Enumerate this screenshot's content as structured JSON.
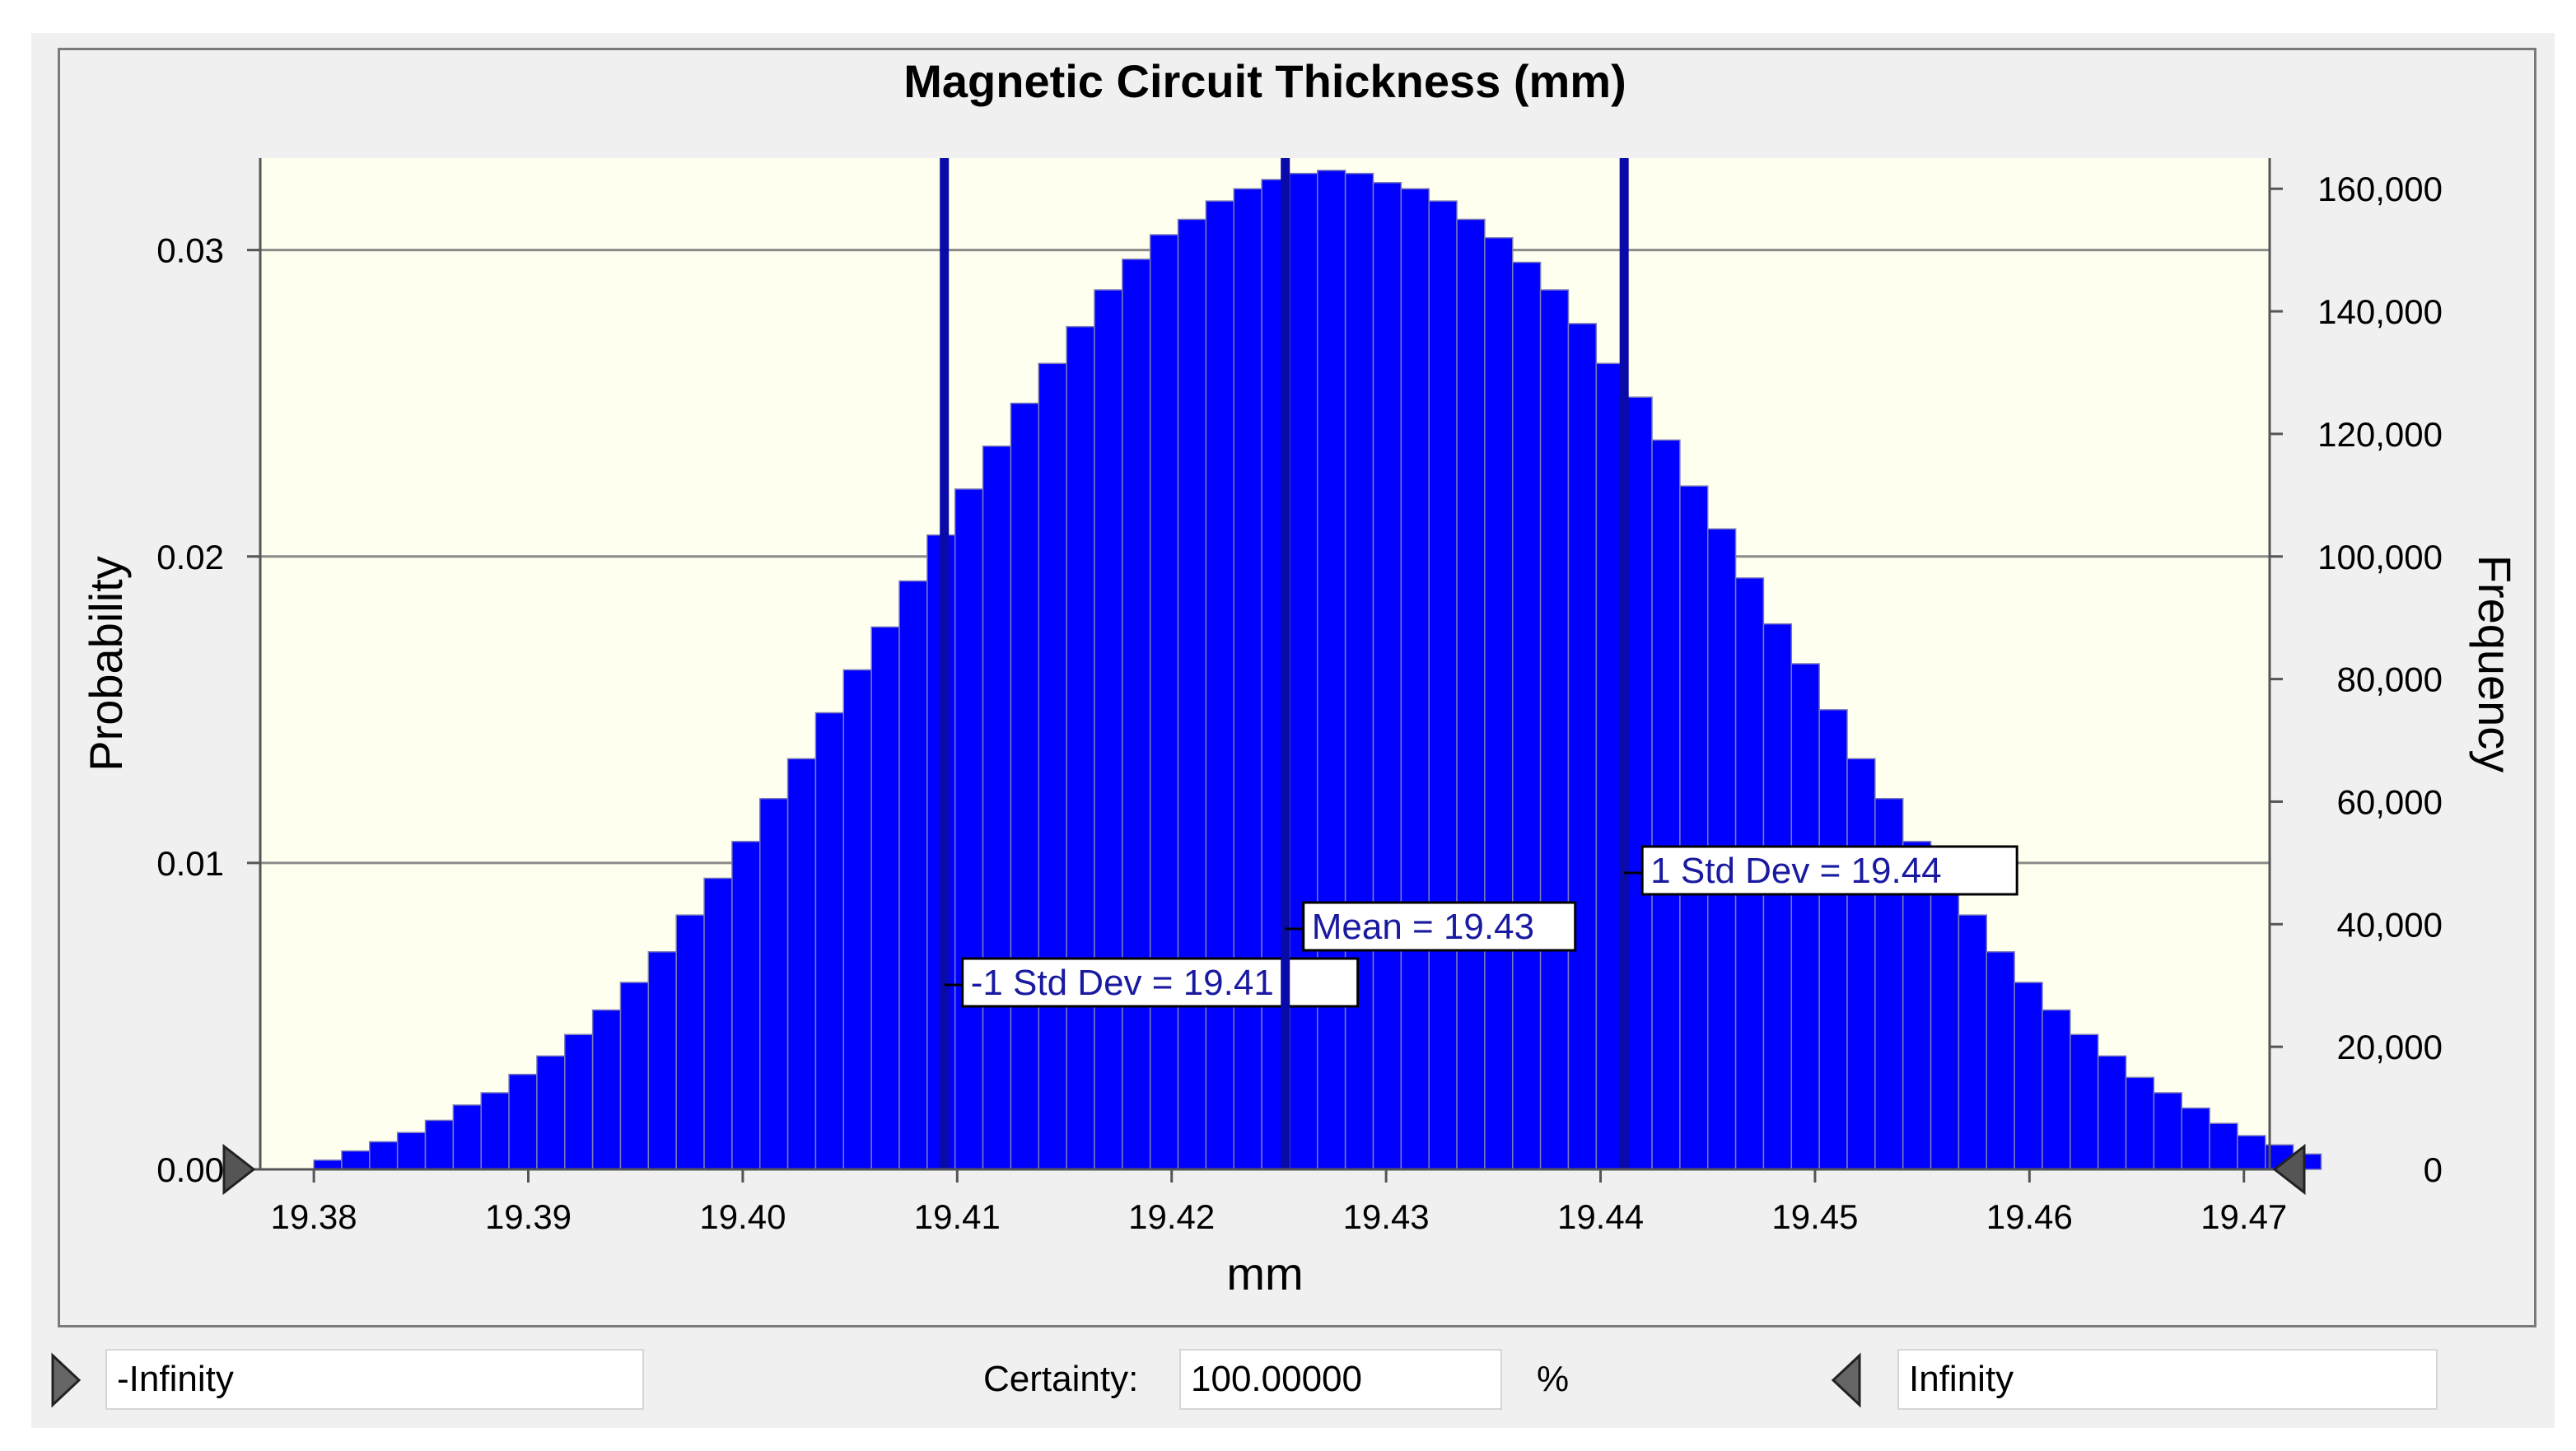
{
  "chart_data": {
    "type": "bar",
    "title": "Magnetic Circuit Thickness (mm)",
    "xlabel": "mm",
    "ylabel_left": "Probability",
    "ylabel_right": "Frequency",
    "xlim": [
      19.3775,
      19.4712
    ],
    "ylim_left": [
      0,
      0.033
    ],
    "ylim_right": [
      0,
      165000
    ],
    "x_ticks": [
      "19.38",
      "19.39",
      "19.40",
      "19.41",
      "19.42",
      "19.43",
      "19.44",
      "19.45",
      "19.46",
      "19.47"
    ],
    "y_ticks_left": [
      "0.00",
      "0.01",
      "0.02",
      "0.03"
    ],
    "y_ticks_right": [
      "0",
      "20,000",
      "40,000",
      "60,000",
      "80,000",
      "100,000",
      "120,000",
      "140,000",
      "160,000"
    ],
    "grid": true,
    "bar_color": "#0000ff",
    "marker_color": "#0a0aa8",
    "plot_background": "#fffff0",
    "bin_start": 19.38,
    "bin_width": 0.0013,
    "values": [
      0.0003,
      0.0006,
      0.0009,
      0.0012,
      0.0016,
      0.0021,
      0.0025,
      0.0031,
      0.0037,
      0.0044,
      0.0052,
      0.0061,
      0.0071,
      0.0083,
      0.0095,
      0.0107,
      0.0121,
      0.0134,
      0.0149,
      0.0163,
      0.0177,
      0.0192,
      0.0207,
      0.0222,
      0.0236,
      0.025,
      0.0263,
      0.0275,
      0.0287,
      0.0297,
      0.0305,
      0.031,
      0.0316,
      0.032,
      0.0323,
      0.0325,
      0.0326,
      0.0325,
      0.0322,
      0.032,
      0.0316,
      0.031,
      0.0304,
      0.0296,
      0.0287,
      0.0276,
      0.0263,
      0.0252,
      0.0238,
      0.0223,
      0.0209,
      0.0193,
      0.0178,
      0.0165,
      0.015,
      0.0134,
      0.0121,
      0.0107,
      0.0095,
      0.0083,
      0.0071,
      0.0061,
      0.0052,
      0.0044,
      0.0037,
      0.003,
      0.0025,
      0.002,
      0.0015,
      0.0011,
      0.0008,
      0.0005
    ],
    "markers": [
      {
        "label": "-1 Std Dev = 19.41",
        "x": 19.4094
      },
      {
        "label": "Mean = 19.43",
        "x": 19.4253
      },
      {
        "label": "1 Std Dev = 19.44",
        "x": 19.4411
      }
    ]
  },
  "controls": {
    "left_value": "-Infinity",
    "certainty_label": "Certainty:",
    "certainty_value": "100.00000",
    "percent_sign": "%",
    "right_value": "Infinity"
  }
}
